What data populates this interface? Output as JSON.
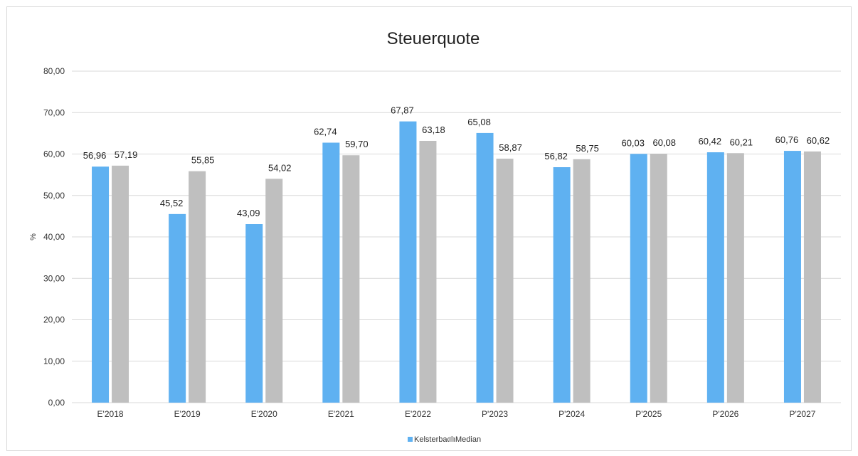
{
  "chart_data": {
    "type": "bar",
    "title": "Steuerquote",
    "ylabel": "%",
    "xlabel": "",
    "ylim": [
      0,
      80
    ],
    "ytick_step": 10,
    "ytick_labels": [
      "0,00",
      "10,00",
      "20,00",
      "30,00",
      "40,00",
      "50,00",
      "60,00",
      "70,00",
      "80,00"
    ],
    "categories": [
      "E'2018",
      "E'2019",
      "E'2020",
      "E'2021",
      "E'2022",
      "P'2023",
      "P'2024",
      "P'2025",
      "P'2026",
      "P'2027"
    ],
    "series": [
      {
        "name": "Kelsterbach",
        "color": "#5fb1f1",
        "values": [
          56.96,
          45.52,
          43.09,
          62.74,
          67.87,
          65.08,
          56.82,
          60.03,
          60.42,
          60.76
        ],
        "labels": [
          "56,96",
          "45,52",
          "43,09",
          "62,74",
          "67,87",
          "65,08",
          "56,82",
          "60,03",
          "60,42",
          "60,76"
        ]
      },
      {
        "name": "Median",
        "color": "#bfbfbf",
        "values": [
          57.19,
          55.85,
          54.02,
          59.7,
          63.18,
          58.87,
          58.75,
          60.08,
          60.21,
          60.62
        ],
        "labels": [
          "57,19",
          "55,85",
          "54,02",
          "59,70",
          "63,18",
          "58,87",
          "58,75",
          "60,08",
          "60,21",
          "60,62"
        ]
      }
    ],
    "grid": true,
    "legend_position": "bottom"
  }
}
